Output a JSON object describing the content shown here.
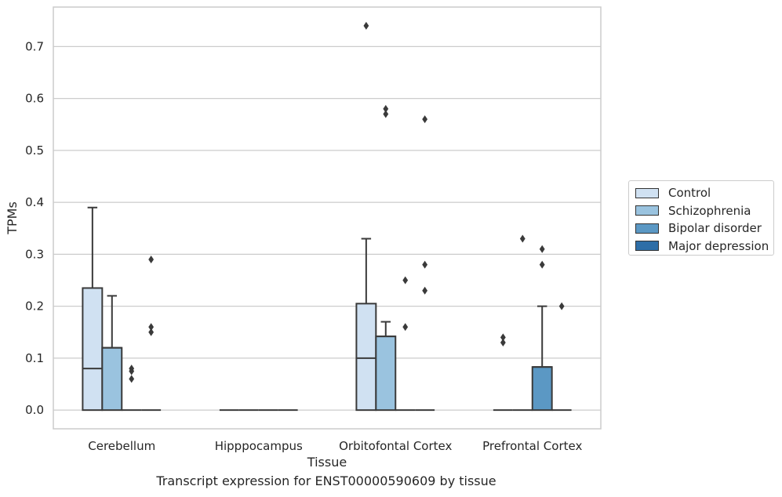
{
  "chart_data": {
    "type": "box",
    "title": "",
    "caption": "Transcript expression for ENST00000590609 by tissue",
    "xlabel": "Tissue",
    "ylabel": "TPMs",
    "ylim": [
      -0.036,
      0.776
    ],
    "yticks": [
      0.0,
      0.1,
      0.2,
      0.3,
      0.4,
      0.5,
      0.6,
      0.7
    ],
    "ytick_labels": [
      "0.0",
      "0.1",
      "0.2",
      "0.3",
      "0.4",
      "0.5",
      "0.6",
      "0.7"
    ],
    "grid": true,
    "legend_position": "right, outside plot",
    "categories": [
      "Cerebellum",
      "Hipppocampus",
      "Orbitofontal Cortex",
      "Prefrontal Cortex"
    ],
    "series": [
      {
        "name": "Control",
        "color": "#d0e1f2",
        "boxes": [
          {
            "whisker_low": 0.0,
            "q1": 0.0,
            "median": 0.08,
            "q3": 0.235,
            "whisker_high": 0.39,
            "outliers": []
          },
          {
            "whisker_low": 0.0,
            "q1": 0.0,
            "median": 0.0,
            "q3": 0.0,
            "whisker_high": 0.0,
            "outliers": []
          },
          {
            "whisker_low": 0.0,
            "q1": 0.0,
            "median": 0.1,
            "q3": 0.205,
            "whisker_high": 0.33,
            "outliers": [
              0.74
            ]
          },
          {
            "whisker_low": 0.0,
            "q1": 0.0,
            "median": 0.0,
            "q3": 0.0,
            "whisker_high": 0.0,
            "outliers": [
              0.13,
              0.14
            ]
          }
        ]
      },
      {
        "name": "Schizophrenia",
        "color": "#9ac3df",
        "boxes": [
          {
            "whisker_low": 0.0,
            "q1": 0.0,
            "median": 0.12,
            "q3": 0.12,
            "whisker_high": 0.22,
            "outliers": []
          },
          {
            "whisker_low": 0.0,
            "q1": 0.0,
            "median": 0.0,
            "q3": 0.0,
            "whisker_high": 0.0,
            "outliers": []
          },
          {
            "whisker_low": 0.0,
            "q1": 0.0,
            "median": 0.142,
            "q3": 0.142,
            "whisker_high": 0.17,
            "outliers": [
              0.57,
              0.58
            ]
          },
          {
            "whisker_low": 0.0,
            "q1": 0.0,
            "median": 0.0,
            "q3": 0.0,
            "whisker_high": 0.0,
            "outliers": [
              0.33
            ]
          }
        ]
      },
      {
        "name": "Bipolar disorder",
        "color": "#5b98c4",
        "boxes": [
          {
            "whisker_low": 0.0,
            "q1": 0.0,
            "median": 0.0,
            "q3": 0.0,
            "whisker_high": 0.0,
            "outliers": [
              0.06,
              0.075,
              0.08
            ]
          },
          {
            "whisker_low": 0.0,
            "q1": 0.0,
            "median": 0.0,
            "q3": 0.0,
            "whisker_high": 0.0,
            "outliers": []
          },
          {
            "whisker_low": 0.0,
            "q1": 0.0,
            "median": 0.0,
            "q3": 0.0,
            "whisker_high": 0.0,
            "outliers": [
              0.16,
              0.25
            ]
          },
          {
            "whisker_low": 0.0,
            "q1": 0.0,
            "median": 0.083,
            "q3": 0.083,
            "whisker_high": 0.2,
            "outliers": [
              0.28,
              0.31
            ]
          }
        ]
      },
      {
        "name": "Major depression",
        "color": "#2e6ea7",
        "boxes": [
          {
            "whisker_low": 0.0,
            "q1": 0.0,
            "median": 0.0,
            "q3": 0.0,
            "whisker_high": 0.0,
            "outliers": [
              0.15,
              0.16,
              0.29
            ]
          },
          {
            "whisker_low": 0.0,
            "q1": 0.0,
            "median": 0.0,
            "q3": 0.0,
            "whisker_high": 0.0,
            "outliers": []
          },
          {
            "whisker_low": 0.0,
            "q1": 0.0,
            "median": 0.0,
            "q3": 0.0,
            "whisker_high": 0.0,
            "outliers": [
              0.23,
              0.28,
              0.56
            ]
          },
          {
            "whisker_low": 0.0,
            "q1": 0.0,
            "median": 0.0,
            "q3": 0.0,
            "whisker_high": 0.0,
            "outliers": [
              0.2
            ]
          }
        ]
      }
    ]
  }
}
